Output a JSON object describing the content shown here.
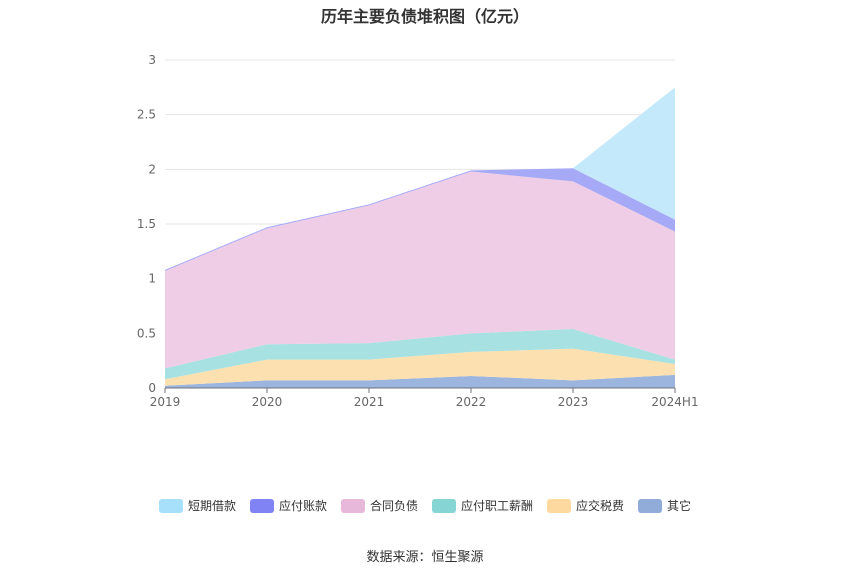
{
  "chart_data": {
    "type": "area",
    "stacked": true,
    "title": "历年主要负债堆积图（亿元）",
    "categories": [
      "2019",
      "2020",
      "2021",
      "2022",
      "2023",
      "2024H1"
    ],
    "ylim": [
      0,
      3
    ],
    "yticks": [
      0,
      0.5,
      1,
      1.5,
      2,
      2.5,
      3
    ],
    "grid": true,
    "legend_position": "bottom",
    "series": [
      {
        "name": "其它",
        "color": "#9bb5de",
        "values": [
          0.02,
          0.07,
          0.07,
          0.11,
          0.07,
          0.12
        ]
      },
      {
        "name": "应交税费",
        "color": "#fde0b0",
        "values": [
          0.06,
          0.19,
          0.19,
          0.22,
          0.29,
          0.1
        ]
      },
      {
        "name": "应付职工薪酬",
        "color": "#a8e1e2",
        "values": [
          0.1,
          0.14,
          0.15,
          0.17,
          0.18,
          0.04
        ]
      },
      {
        "name": "合同负债",
        "color": "#efcde6",
        "values": [
          0.89,
          1.06,
          1.26,
          1.48,
          1.35,
          1.17
        ]
      },
      {
        "name": "应付账款",
        "color": "#a6a9f6",
        "values": [
          0.01,
          0.01,
          0.01,
          0.01,
          0.12,
          0.11
        ]
      },
      {
        "name": "短期借款",
        "color": "#c4e9fb",
        "values": [
          0,
          0,
          0,
          0,
          0,
          1.21
        ]
      }
    ]
  },
  "legend": [
    {
      "label": "短期借款",
      "color": "#a7e0fa"
    },
    {
      "label": "应付账款",
      "color": "#8083f4"
    },
    {
      "label": "合同负债",
      "color": "#e8b8da"
    },
    {
      "label": "应付职工薪酬",
      "color": "#86d4d3"
    },
    {
      "label": "应交税费",
      "color": "#fdd9a0"
    },
    {
      "label": "其它",
      "color": "#91acd9"
    }
  ],
  "source": "数据来源：恒生聚源"
}
